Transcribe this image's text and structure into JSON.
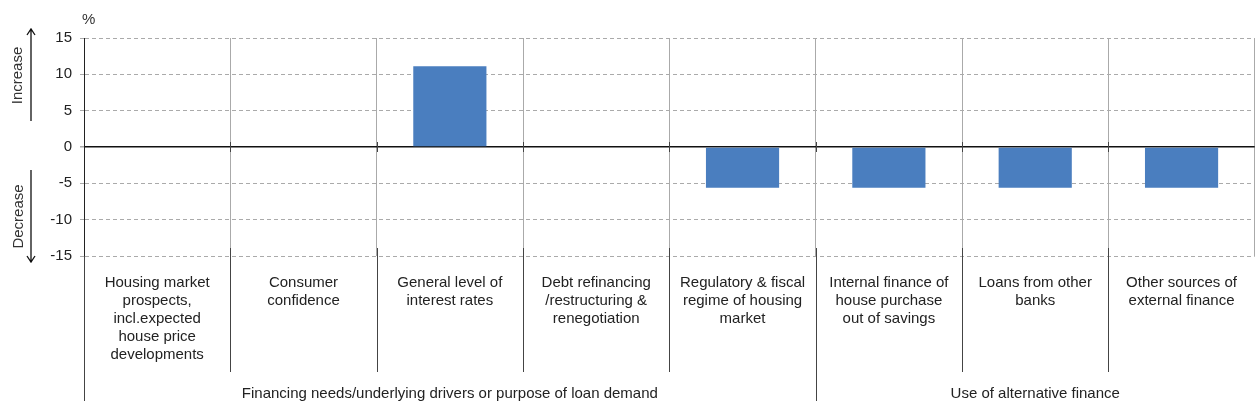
{
  "chart_data": {
    "type": "bar",
    "ylabel": "%",
    "categories": [
      "Housing market prospects, incl.expected house price developments",
      "Consumer confidence",
      "General level of interest rates",
      "Debt refinancing /restructuring & renegotiation",
      "Regulatory & fiscal regime of housing market",
      "Internal finance of house purchase out of savings",
      "Loans from other banks",
      "Other sources of external finance"
    ],
    "values": [
      0,
      0,
      11.1,
      0,
      -5.6,
      -5.6,
      -5.6,
      -5.6
    ],
    "color": "#4a7ebf",
    "ylim": [
      -15,
      15
    ],
    "yticks": [
      -15,
      -10,
      -5,
      0,
      5,
      10,
      15
    ],
    "grid": true,
    "legend": false,
    "annotations": [
      "Increase",
      "Decrease",
      "Financing needs/underlying drivers or purpose of loan demand",
      "Use of alternative finance"
    ]
  }
}
